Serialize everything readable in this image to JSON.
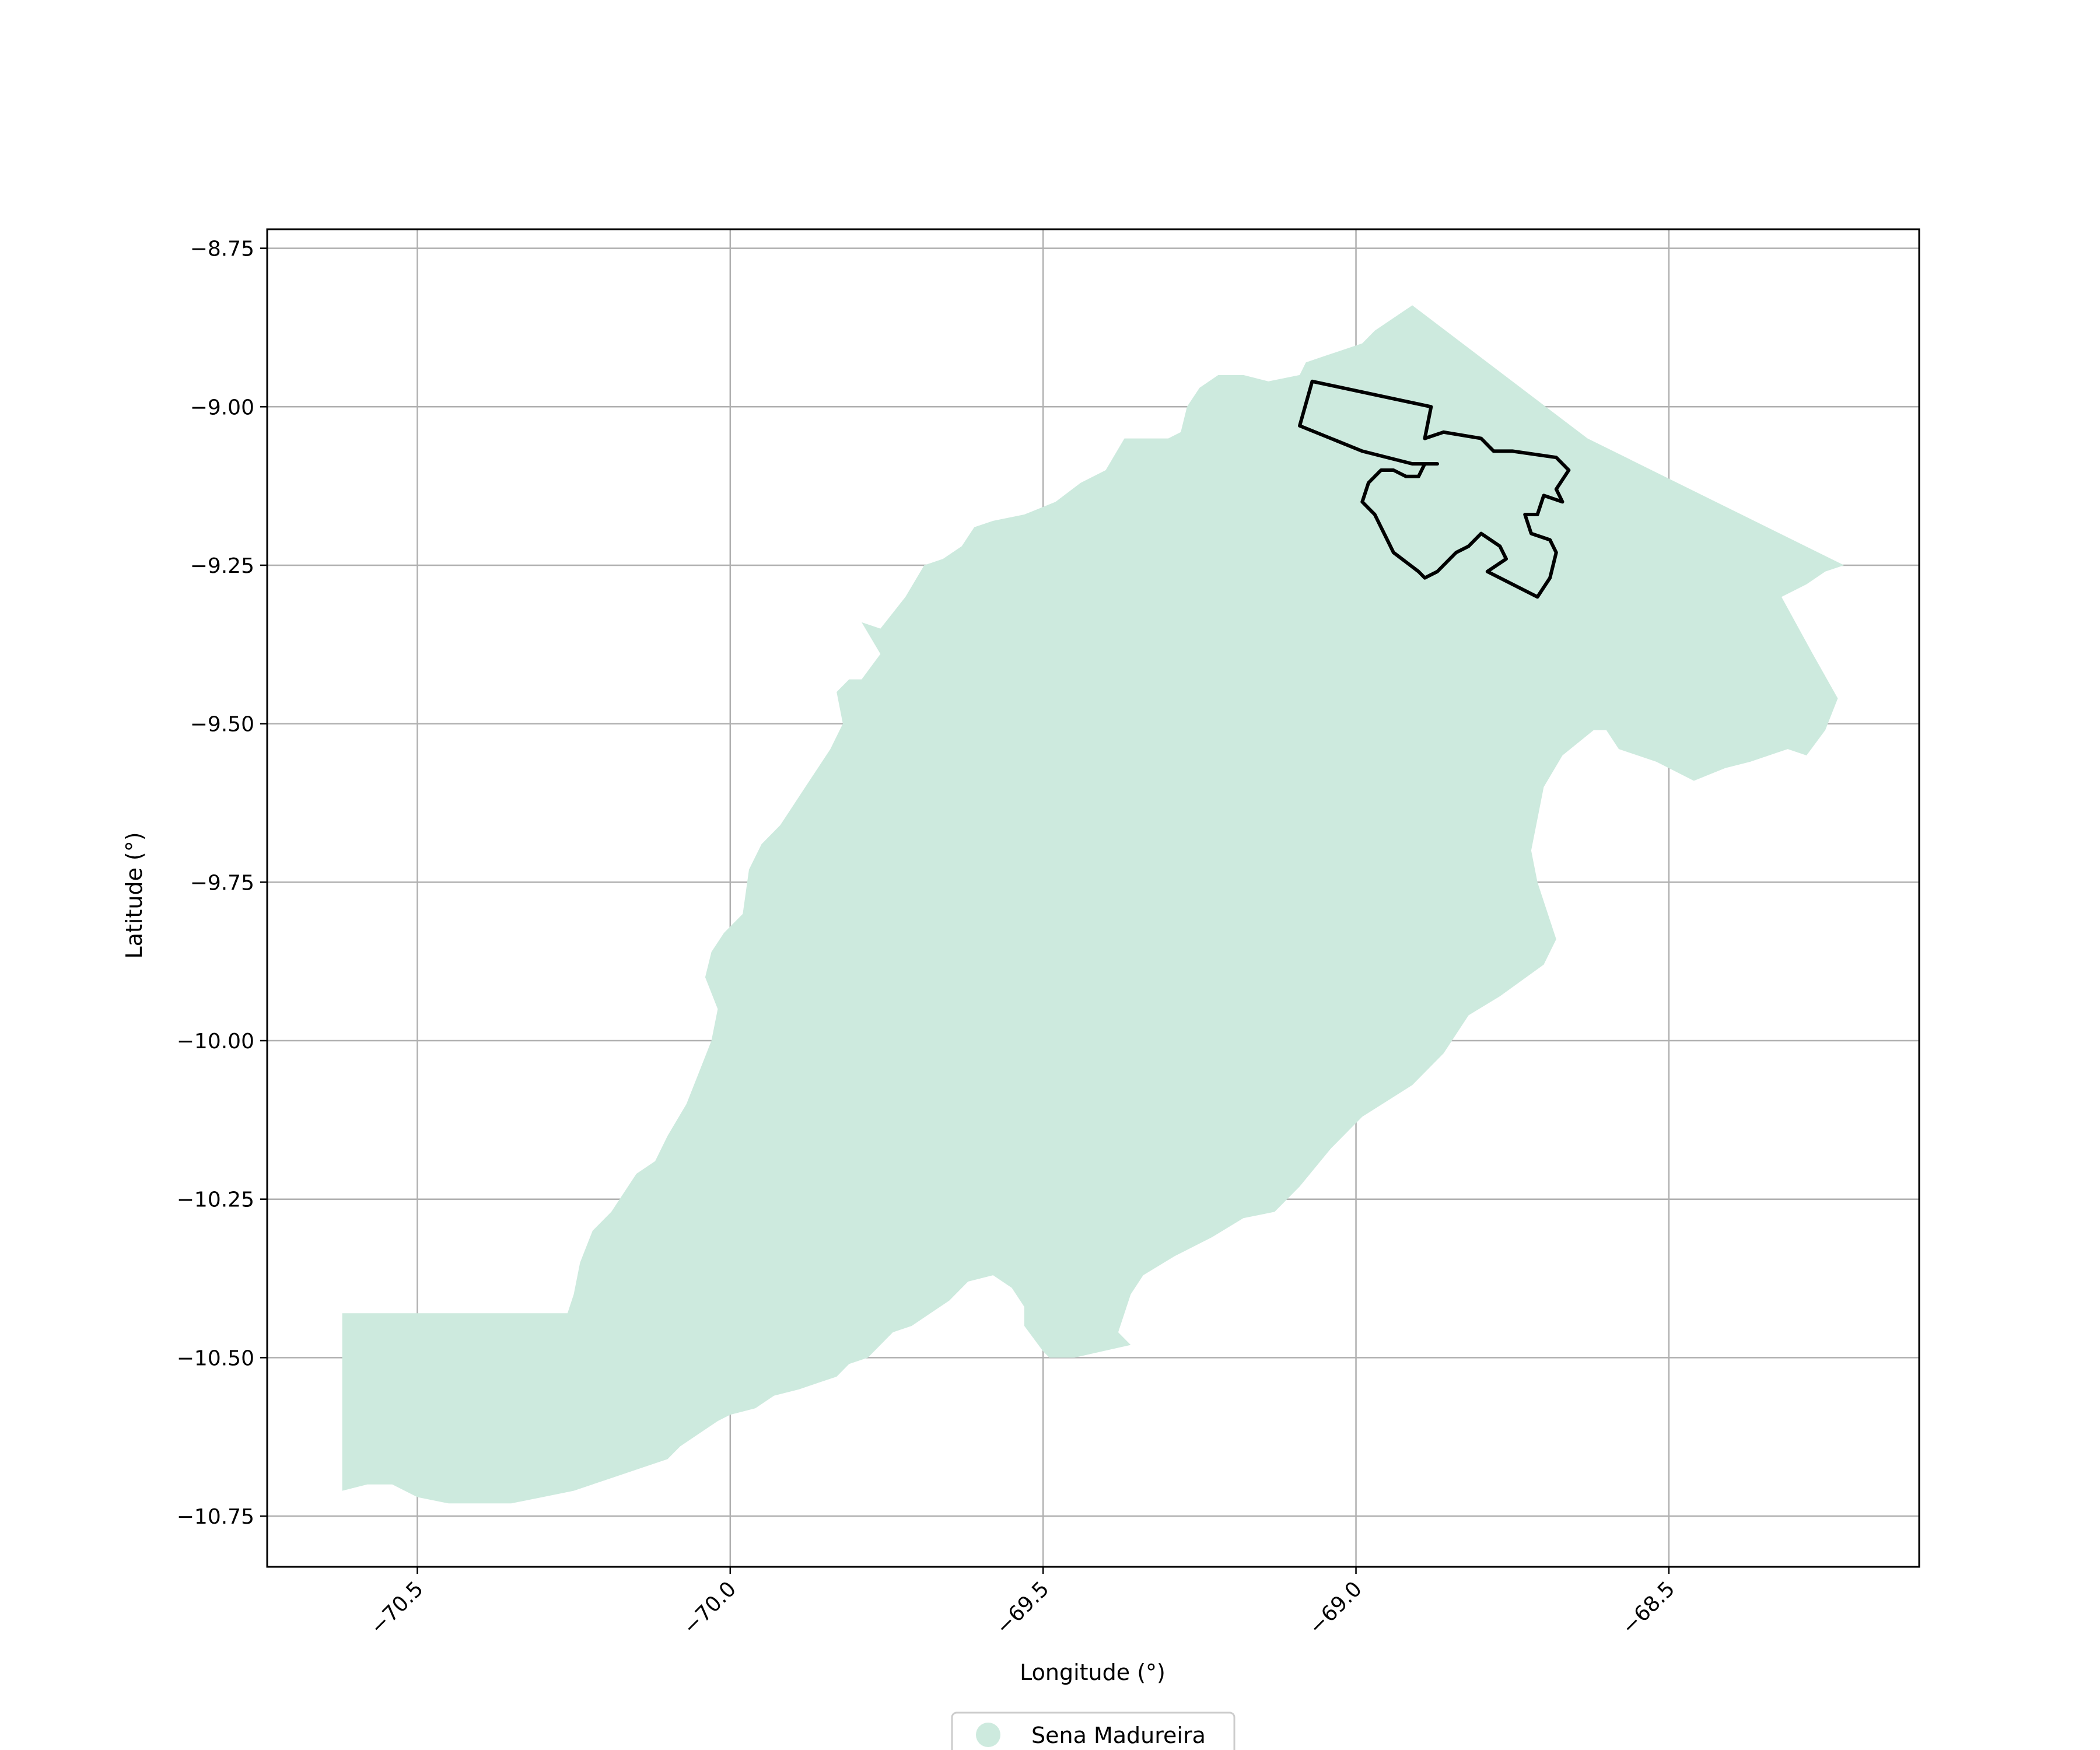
{
  "map": {
    "xlabel": "Longitude (°)",
    "ylabel": "Latitude (°)",
    "xlim": [
      -70.74,
      -68.1
    ],
    "ylim": [
      -10.83,
      -8.72
    ],
    "grid": true,
    "legend_placement": "bottom-center",
    "x_ticks": [
      {
        "value": -70.5,
        "label": "−70.5"
      },
      {
        "value": -70.0,
        "label": "−70.0"
      },
      {
        "value": -69.5,
        "label": "−69.5"
      },
      {
        "value": -69.0,
        "label": "−69.0"
      },
      {
        "value": -68.5,
        "label": "−68.5"
      }
    ],
    "y_ticks": [
      {
        "value": -8.75,
        "label": "−8.75"
      },
      {
        "value": -9.0,
        "label": "−9.00"
      },
      {
        "value": -9.25,
        "label": "−9.25"
      },
      {
        "value": -9.5,
        "label": "−9.50"
      },
      {
        "value": -9.75,
        "label": "−9.75"
      },
      {
        "value": -10.0,
        "label": "−10.00"
      },
      {
        "value": -10.25,
        "label": "−10.25"
      },
      {
        "value": -10.5,
        "label": "−10.50"
      },
      {
        "value": -10.75,
        "label": "−10.75"
      }
    ],
    "colors": {
      "region_fill": "#cdeade",
      "outline_stroke": "#000000",
      "grid": "#b0b0b0"
    },
    "legend": {
      "label": "Sena Madureira"
    },
    "region": [
      [
        -70.62,
        -10.43
      ],
      [
        -70.26,
        -10.43
      ],
      [
        -70.25,
        -10.4
      ],
      [
        -70.24,
        -10.35
      ],
      [
        -70.22,
        -10.3
      ],
      [
        -70.19,
        -10.27
      ],
      [
        -70.17,
        -10.24
      ],
      [
        -70.15,
        -10.21
      ],
      [
        -70.12,
        -10.19
      ],
      [
        -70.1,
        -10.15
      ],
      [
        -70.07,
        -10.1
      ],
      [
        -70.05,
        -10.05
      ],
      [
        -70.03,
        -10.0
      ],
      [
        -70.02,
        -9.95
      ],
      [
        -70.04,
        -9.9
      ],
      [
        -70.03,
        -9.86
      ],
      [
        -70.01,
        -9.83
      ],
      [
        -69.98,
        -9.8
      ],
      [
        -69.97,
        -9.73
      ],
      [
        -69.95,
        -9.69
      ],
      [
        -69.92,
        -9.66
      ],
      [
        -69.9,
        -9.63
      ],
      [
        -69.88,
        -9.6
      ],
      [
        -69.86,
        -9.57
      ],
      [
        -69.84,
        -9.54
      ],
      [
        -69.82,
        -9.5
      ],
      [
        -69.83,
        -9.45
      ],
      [
        -69.81,
        -9.43
      ],
      [
        -69.79,
        -9.43
      ],
      [
        -69.76,
        -9.39
      ],
      [
        -69.79,
        -9.34
      ],
      [
        -69.76,
        -9.35
      ],
      [
        -69.72,
        -9.3
      ],
      [
        -69.69,
        -9.25
      ],
      [
        -69.66,
        -9.24
      ],
      [
        -69.63,
        -9.22
      ],
      [
        -69.61,
        -9.19
      ],
      [
        -69.58,
        -9.18
      ],
      [
        -69.53,
        -9.17
      ],
      [
        -69.48,
        -9.15
      ],
      [
        -69.44,
        -9.12
      ],
      [
        -69.4,
        -9.1
      ],
      [
        -69.37,
        -9.05
      ],
      [
        -69.3,
        -9.05
      ],
      [
        -69.28,
        -9.04
      ],
      [
        -69.27,
        -9.0
      ],
      [
        -69.25,
        -8.97
      ],
      [
        -69.22,
        -8.95
      ],
      [
        -69.18,
        -8.95
      ],
      [
        -69.14,
        -8.96
      ],
      [
        -69.09,
        -8.95
      ],
      [
        -69.08,
        -8.93
      ],
      [
        -69.05,
        -8.92
      ],
      [
        -69.02,
        -8.91
      ],
      [
        -68.99,
        -8.9
      ],
      [
        -68.97,
        -8.88
      ],
      [
        -68.94,
        -8.86
      ],
      [
        -68.91,
        -8.84
      ],
      [
        -68.63,
        -9.05
      ],
      [
        -68.22,
        -9.25
      ],
      [
        -68.25,
        -9.26
      ],
      [
        -68.28,
        -9.28
      ],
      [
        -68.32,
        -9.3
      ],
      [
        -68.27,
        -9.39
      ],
      [
        -68.23,
        -9.46
      ],
      [
        -68.25,
        -9.51
      ],
      [
        -68.28,
        -9.55
      ],
      [
        -68.31,
        -9.54
      ],
      [
        -68.34,
        -9.55
      ],
      [
        -68.37,
        -9.56
      ],
      [
        -68.41,
        -9.57
      ],
      [
        -68.46,
        -9.59
      ],
      [
        -68.52,
        -9.56
      ],
      [
        -68.58,
        -9.54
      ],
      [
        -68.6,
        -9.51
      ],
      [
        -68.62,
        -9.51
      ],
      [
        -68.67,
        -9.55
      ],
      [
        -68.7,
        -9.6
      ],
      [
        -68.72,
        -9.7
      ],
      [
        -68.71,
        -9.75
      ],
      [
        -68.68,
        -9.84
      ],
      [
        -68.7,
        -9.88
      ],
      [
        -68.77,
        -9.93
      ],
      [
        -68.82,
        -9.96
      ],
      [
        -68.86,
        -10.02
      ],
      [
        -68.91,
        -10.07
      ],
      [
        -68.99,
        -10.12
      ],
      [
        -69.04,
        -10.17
      ],
      [
        -69.09,
        -10.23
      ],
      [
        -69.13,
        -10.27
      ],
      [
        -69.18,
        -10.28
      ],
      [
        -69.23,
        -10.31
      ],
      [
        -69.29,
        -10.34
      ],
      [
        -69.34,
        -10.37
      ],
      [
        -69.36,
        -10.4
      ],
      [
        -69.38,
        -10.46
      ],
      [
        -69.36,
        -10.48
      ],
      [
        -69.45,
        -10.5
      ],
      [
        -69.49,
        -10.5
      ],
      [
        -69.5,
        -10.49
      ],
      [
        -69.53,
        -10.45
      ],
      [
        -69.53,
        -10.42
      ],
      [
        -69.55,
        -10.39
      ],
      [
        -69.58,
        -10.37
      ],
      [
        -69.62,
        -10.38
      ],
      [
        -69.65,
        -10.41
      ],
      [
        -69.68,
        -10.43
      ],
      [
        -69.71,
        -10.45
      ],
      [
        -69.74,
        -10.46
      ],
      [
        -69.76,
        -10.48
      ],
      [
        -69.78,
        -10.5
      ],
      [
        -69.81,
        -10.51
      ],
      [
        -69.83,
        -10.53
      ],
      [
        -69.86,
        -10.54
      ],
      [
        -69.89,
        -10.55
      ],
      [
        -69.93,
        -10.56
      ],
      [
        -69.96,
        -10.58
      ],
      [
        -70.0,
        -10.59
      ],
      [
        -70.02,
        -10.6
      ],
      [
        -70.05,
        -10.62
      ],
      [
        -70.08,
        -10.64
      ],
      [
        -70.1,
        -10.66
      ],
      [
        -70.13,
        -10.67
      ],
      [
        -70.16,
        -10.68
      ],
      [
        -70.19,
        -10.69
      ],
      [
        -70.22,
        -10.7
      ],
      [
        -70.25,
        -10.71
      ],
      [
        -70.3,
        -10.72
      ],
      [
        -70.35,
        -10.73
      ],
      [
        -70.4,
        -10.73
      ],
      [
        -70.45,
        -10.73
      ],
      [
        -70.5,
        -10.72
      ],
      [
        -70.54,
        -10.7
      ],
      [
        -70.58,
        -10.7
      ],
      [
        -70.62,
        -10.71
      ]
    ],
    "outline": [
      [
        -69.07,
        -8.96
      ],
      [
        -68.88,
        -9.0
      ],
      [
        -68.89,
        -9.05
      ],
      [
        -68.86,
        -9.04
      ],
      [
        -68.8,
        -9.05
      ],
      [
        -68.78,
        -9.07
      ],
      [
        -68.75,
        -9.07
      ],
      [
        -68.68,
        -9.08
      ],
      [
        -68.66,
        -9.1
      ],
      [
        -68.68,
        -9.13
      ],
      [
        -68.67,
        -9.15
      ],
      [
        -68.7,
        -9.14
      ],
      [
        -68.71,
        -9.17
      ],
      [
        -68.73,
        -9.17
      ],
      [
        -68.72,
        -9.2
      ],
      [
        -68.69,
        -9.21
      ],
      [
        -68.68,
        -9.23
      ],
      [
        -68.69,
        -9.27
      ],
      [
        -68.71,
        -9.3
      ],
      [
        -68.79,
        -9.26
      ],
      [
        -68.76,
        -9.24
      ],
      [
        -68.77,
        -9.22
      ],
      [
        -68.8,
        -9.2
      ],
      [
        -68.82,
        -9.22
      ],
      [
        -68.84,
        -9.23
      ],
      [
        -68.87,
        -9.26
      ],
      [
        -68.89,
        -9.27
      ],
      [
        -68.9,
        -9.26
      ],
      [
        -68.94,
        -9.23
      ],
      [
        -68.95,
        -9.21
      ],
      [
        -68.97,
        -9.17
      ],
      [
        -68.98,
        -9.16
      ],
      [
        -68.99,
        -9.15
      ],
      [
        -68.98,
        -9.12
      ],
      [
        -68.96,
        -9.1
      ],
      [
        -68.94,
        -9.1
      ],
      [
        -68.92,
        -9.11
      ],
      [
        -68.9,
        -9.11
      ],
      [
        -68.89,
        -9.09
      ],
      [
        -68.87,
        -9.09
      ],
      [
        -68.91,
        -9.09
      ],
      [
        -68.99,
        -9.07
      ],
      [
        -69.09,
        -9.03
      ]
    ]
  }
}
